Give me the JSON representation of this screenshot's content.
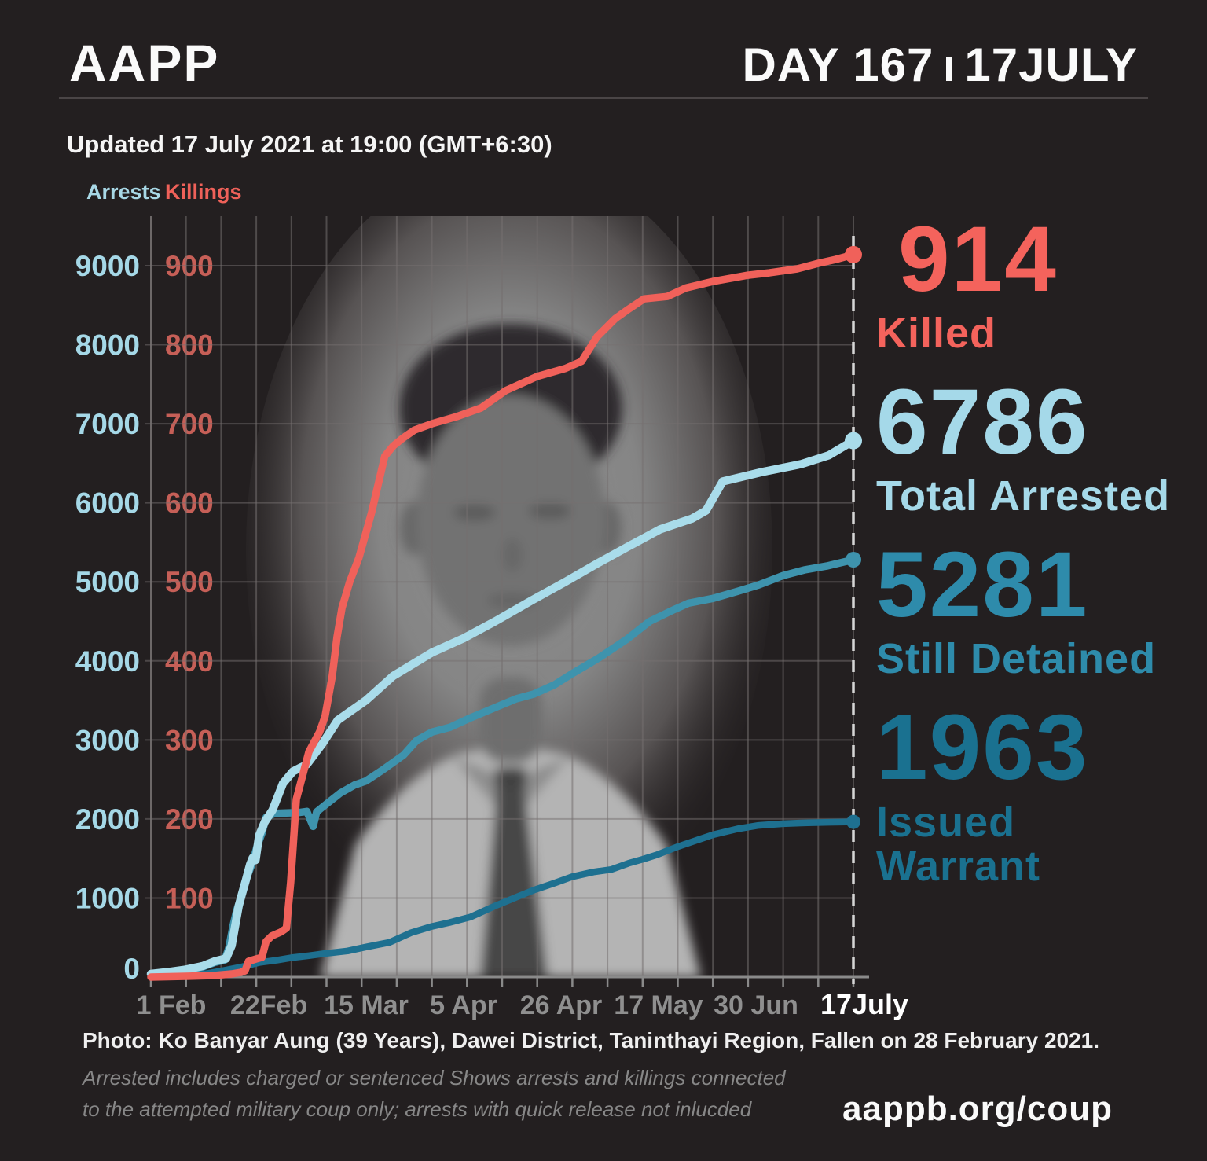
{
  "header": {
    "logo": "AAPP",
    "day_label": "DAY 167",
    "date_label": "17JULY",
    "updated": "Updated 17 July 2021 at 19:00 (GMT+6:30)"
  },
  "legend": {
    "arrests": "Arrests",
    "killings": "Killings"
  },
  "stats": [
    {
      "value": "914",
      "label": "Killed",
      "color": "#f4635c"
    },
    {
      "value": "6786",
      "label": "Total Arrested",
      "color": "#a5d9e9"
    },
    {
      "value": "5281",
      "label": "Still Detained",
      "color": "#2e8bab"
    },
    {
      "value": "1963",
      "label": "Issued Warrant",
      "color": "#1a7190"
    }
  ],
  "footer": {
    "photo_caption": "Photo:  Ko Banyar Aung (39 Years), Dawei District, Taninthayi Region, Fallen on 28 February 2021.",
    "note_line1": "Arrested includes charged or sentenced Shows arrests and killings connected",
    "note_line2": "to the attempted military coup only; arrests with quick release not inlucded",
    "site": "aappb.org/coup"
  },
  "chart_data": {
    "type": "line",
    "title": "Cumulative arrests and killings since 1 February 2021 coup",
    "x_axis": {
      "span": "1 Feb 2021 to 17 Jul 2021",
      "tick_labels": [
        "1 Feb",
        "22Feb",
        "15 Mar",
        "5 Apr",
        "26 Apr",
        "17 May",
        "30 Jun",
        "17July"
      ],
      "note": "series points use x as fraction 0-1 of the axis from 1 Feb to 17 July"
    },
    "y_axis_arrests": {
      "label": "Arrests",
      "ticks": [
        0,
        1000,
        2000,
        3000,
        4000,
        5000,
        6000,
        7000,
        8000,
        9000
      ],
      "range": [
        0,
        9000
      ]
    },
    "y_axis_killings": {
      "label": "Killings",
      "ticks": [
        100,
        200,
        300,
        400,
        500,
        600,
        700,
        800,
        900
      ],
      "range": [
        0,
        900
      ]
    },
    "grid": {
      "vertical_divisions": 20,
      "horizontal_every": 1000
    },
    "series": [
      {
        "name": "Issued Warrant",
        "axis": "arrests",
        "color": "#1e7090",
        "width": 8.5,
        "dot": 9,
        "final_value": 1963,
        "points": [
          [
            0,
            5
          ],
          [
            0.05,
            25
          ],
          [
            0.08,
            45
          ],
          [
            0.107,
            90
          ],
          [
            0.13,
            130
          ],
          [
            0.155,
            185
          ],
          [
            0.18,
            215
          ],
          [
            0.2,
            245
          ],
          [
            0.225,
            270
          ],
          [
            0.25,
            300
          ],
          [
            0.28,
            330
          ],
          [
            0.306,
            380
          ],
          [
            0.34,
            440
          ],
          [
            0.37,
            560
          ],
          [
            0.4,
            640
          ],
          [
            0.425,
            690
          ],
          [
            0.455,
            760
          ],
          [
            0.49,
            900
          ],
          [
            0.52,
            1010
          ],
          [
            0.545,
            1100
          ],
          [
            0.575,
            1190
          ],
          [
            0.6,
            1270
          ],
          [
            0.63,
            1330
          ],
          [
            0.655,
            1360
          ],
          [
            0.68,
            1440
          ],
          [
            0.7,
            1490
          ],
          [
            0.72,
            1545
          ],
          [
            0.75,
            1650
          ],
          [
            0.775,
            1725
          ],
          [
            0.8,
            1800
          ],
          [
            0.835,
            1875
          ],
          [
            0.865,
            1918
          ],
          [
            0.9,
            1940
          ],
          [
            0.935,
            1952
          ],
          [
            0.965,
            1958
          ],
          [
            1,
            1963
          ]
        ]
      },
      {
        "name": "Still Detained",
        "axis": "arrests",
        "color": "#3e93ad",
        "width": 9.5,
        "dot": 10,
        "final_value": 5281,
        "points": [
          [
            0,
            35
          ],
          [
            0.03,
            60
          ],
          [
            0.05,
            85
          ],
          [
            0.074,
            130
          ],
          [
            0.091,
            185
          ],
          [
            0.105,
            215
          ],
          [
            0.111,
            370
          ],
          [
            0.117,
            650
          ],
          [
            0.122,
            840
          ],
          [
            0.128,
            1000
          ],
          [
            0.136,
            1250
          ],
          [
            0.144,
            1430
          ],
          [
            0.151,
            1650
          ],
          [
            0.158,
            1820
          ],
          [
            0.164,
            2020
          ],
          [
            0.176,
            2070
          ],
          [
            0.21,
            2080
          ],
          [
            0.222,
            2095
          ],
          [
            0.227,
            1990
          ],
          [
            0.231,
            1905
          ],
          [
            0.236,
            2090
          ],
          [
            0.25,
            2190
          ],
          [
            0.27,
            2330
          ],
          [
            0.29,
            2430
          ],
          [
            0.306,
            2480
          ],
          [
            0.33,
            2620
          ],
          [
            0.36,
            2810
          ],
          [
            0.378,
            2990
          ],
          [
            0.4,
            3100
          ],
          [
            0.426,
            3160
          ],
          [
            0.455,
            3280
          ],
          [
            0.49,
            3410
          ],
          [
            0.52,
            3520
          ],
          [
            0.545,
            3580
          ],
          [
            0.575,
            3700
          ],
          [
            0.6,
            3840
          ],
          [
            0.638,
            4040
          ],
          [
            0.677,
            4270
          ],
          [
            0.71,
            4500
          ],
          [
            0.745,
            4650
          ],
          [
            0.765,
            4730
          ],
          [
            0.8,
            4790
          ],
          [
            0.835,
            4880
          ],
          [
            0.865,
            4960
          ],
          [
            0.9,
            5080
          ],
          [
            0.93,
            5150
          ],
          [
            0.962,
            5200
          ],
          [
            1,
            5281
          ]
        ]
      },
      {
        "name": "Arrests (Total Arrested)",
        "axis": "arrests",
        "color": "#a9dcea",
        "width": 10.5,
        "dot": 11,
        "final_value": 6786,
        "points": [
          [
            0,
            40
          ],
          [
            0.03,
            70
          ],
          [
            0.05,
            95
          ],
          [
            0.074,
            140
          ],
          [
            0.091,
            200
          ],
          [
            0.107,
            235
          ],
          [
            0.115,
            400
          ],
          [
            0.121,
            700
          ],
          [
            0.125,
            900
          ],
          [
            0.129,
            1030
          ],
          [
            0.135,
            1220
          ],
          [
            0.141,
            1420
          ],
          [
            0.145,
            1510
          ],
          [
            0.149,
            1480
          ],
          [
            0.154,
            1790
          ],
          [
            0.162,
            1960
          ],
          [
            0.173,
            2110
          ],
          [
            0.188,
            2450
          ],
          [
            0.202,
            2600
          ],
          [
            0.222,
            2690
          ],
          [
            0.244,
            2950
          ],
          [
            0.266,
            3250
          ],
          [
            0.306,
            3500
          ],
          [
            0.345,
            3810
          ],
          [
            0.4,
            4105
          ],
          [
            0.445,
            4285
          ],
          [
            0.49,
            4500
          ],
          [
            0.543,
            4770
          ],
          [
            0.59,
            5000
          ],
          [
            0.635,
            5230
          ],
          [
            0.68,
            5450
          ],
          [
            0.725,
            5665
          ],
          [
            0.77,
            5800
          ],
          [
            0.79,
            5900
          ],
          [
            0.814,
            6270
          ],
          [
            0.87,
            6390
          ],
          [
            0.926,
            6490
          ],
          [
            0.965,
            6600
          ],
          [
            1,
            6786
          ]
        ]
      },
      {
        "name": "Killings",
        "axis": "killings",
        "color": "#f0615a",
        "width": 9.5,
        "dot": 11,
        "final_value": 914,
        "points": [
          [
            0,
            0
          ],
          [
            0.05,
            1
          ],
          [
            0.09,
            2
          ],
          [
            0.115,
            4
          ],
          [
            0.128,
            6
          ],
          [
            0.134,
            8
          ],
          [
            0.139,
            20
          ],
          [
            0.15,
            23
          ],
          [
            0.158,
            25
          ],
          [
            0.164,
            45
          ],
          [
            0.172,
            52
          ],
          [
            0.185,
            57
          ],
          [
            0.193,
            62
          ],
          [
            0.199,
            120
          ],
          [
            0.207,
            225
          ],
          [
            0.216,
            255
          ],
          [
            0.225,
            285
          ],
          [
            0.24,
            310
          ],
          [
            0.248,
            330
          ],
          [
            0.258,
            380
          ],
          [
            0.265,
            430
          ],
          [
            0.272,
            467
          ],
          [
            0.283,
            500
          ],
          [
            0.296,
            530
          ],
          [
            0.314,
            587
          ],
          [
            0.333,
            659
          ],
          [
            0.345,
            672
          ],
          [
            0.359,
            682
          ],
          [
            0.375,
            692
          ],
          [
            0.4,
            700
          ],
          [
            0.435,
            709
          ],
          [
            0.47,
            720
          ],
          [
            0.505,
            742
          ],
          [
            0.55,
            760
          ],
          [
            0.59,
            770
          ],
          [
            0.613,
            779
          ],
          [
            0.635,
            810
          ],
          [
            0.661,
            833
          ],
          [
            0.68,
            845
          ],
          [
            0.702,
            858
          ],
          [
            0.735,
            861
          ],
          [
            0.762,
            872
          ],
          [
            0.8,
            880
          ],
          [
            0.85,
            888
          ],
          [
            0.88,
            891
          ],
          [
            0.92,
            896
          ],
          [
            0.95,
            903
          ],
          [
            0.975,
            908
          ],
          [
            1,
            914
          ]
        ]
      }
    ]
  }
}
